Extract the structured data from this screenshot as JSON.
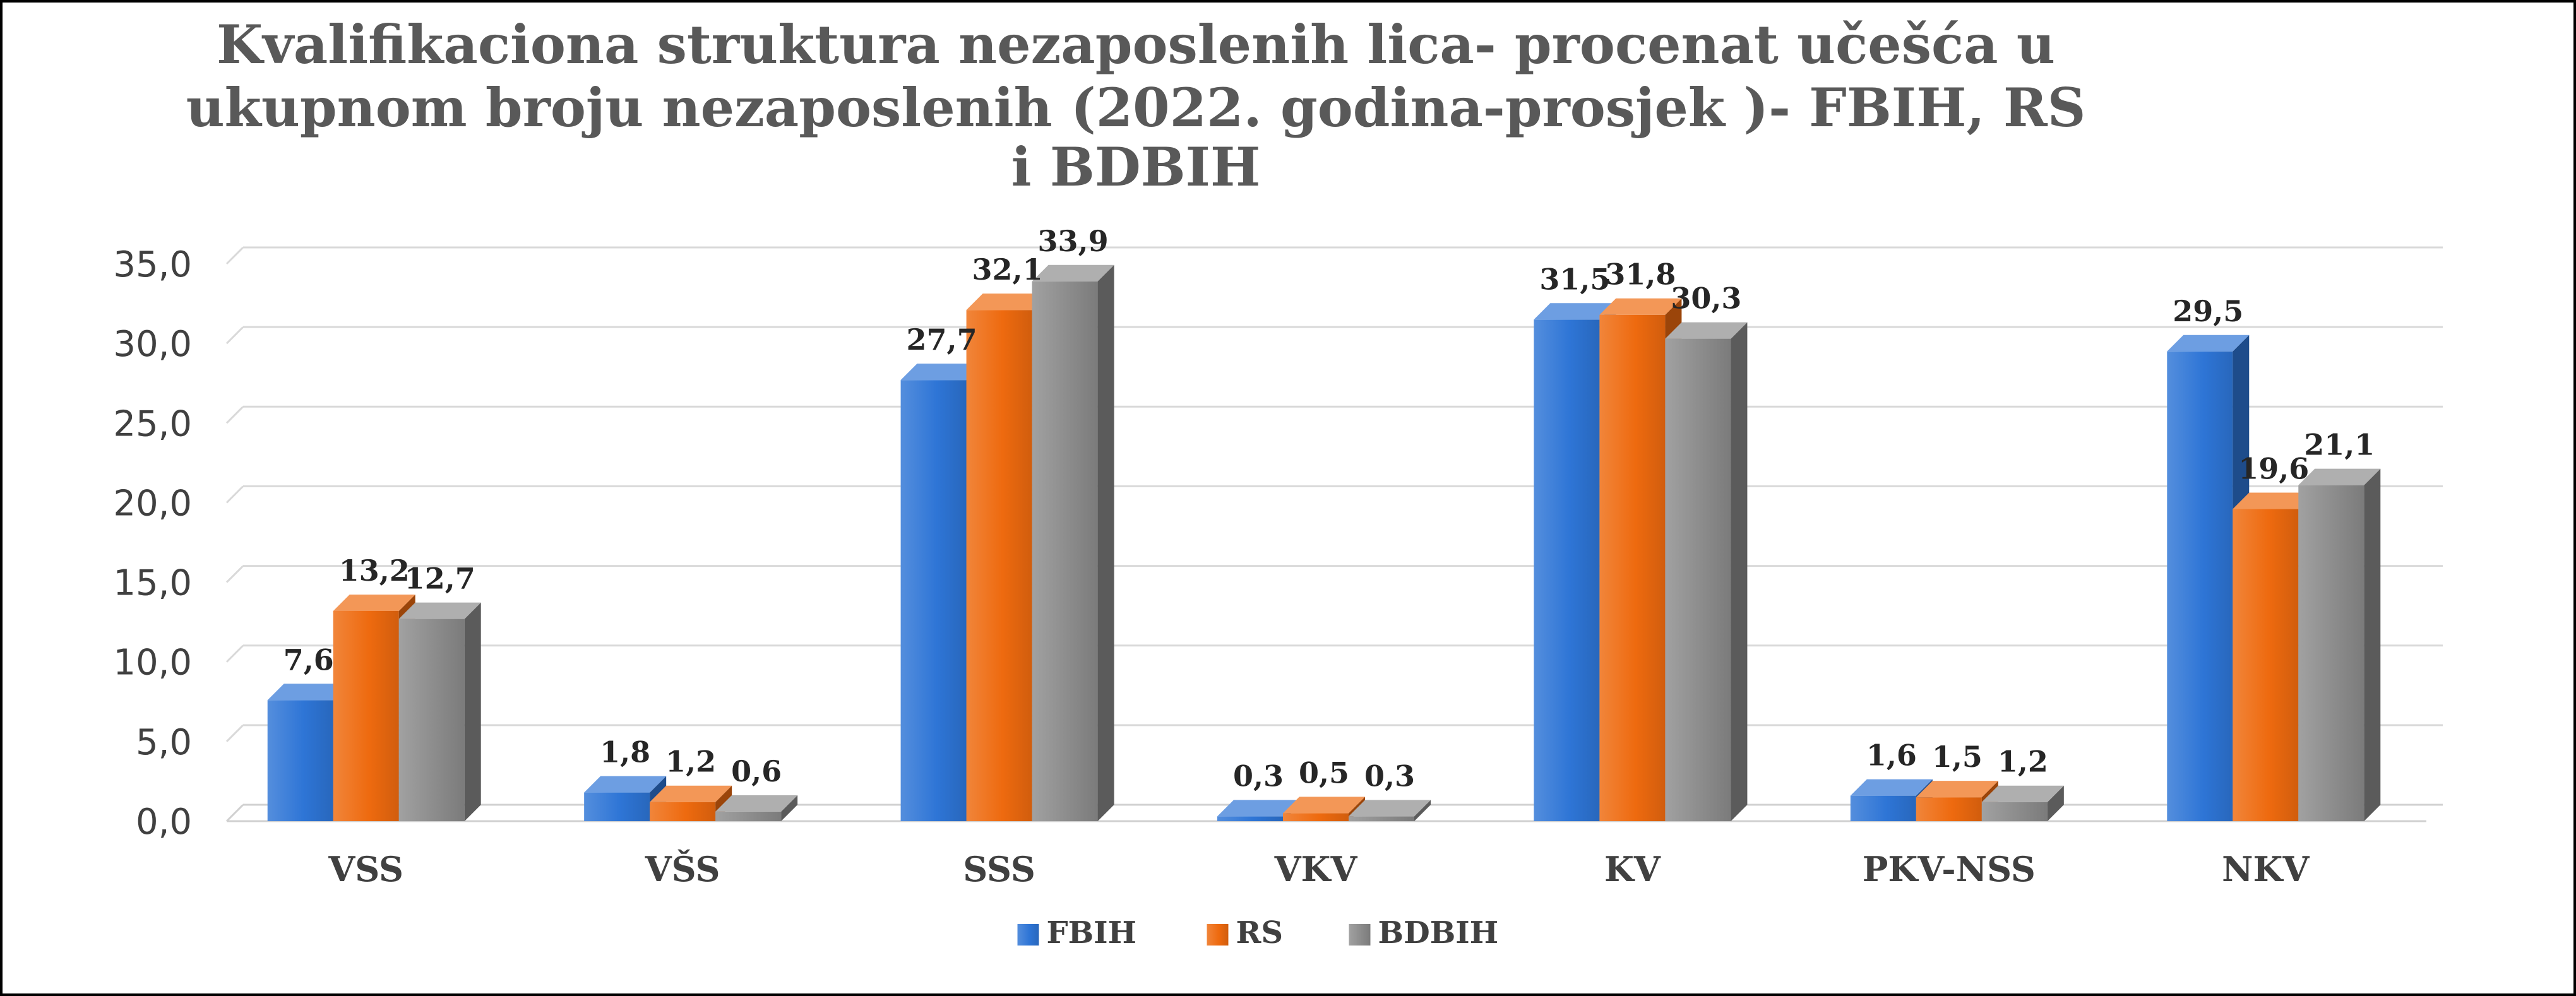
{
  "chart_data": {
    "type": "bar",
    "title_lines": [
      "Kvalifikaciona struktura  nezaposlenih lica- procenat učešća u",
      "ukupnom broju nezaposlenih (2022. godina-prosjek )- FBIH, RS",
      "i BDBIH"
    ],
    "categories": [
      "VSS",
      "VŠS",
      "SSS",
      "VKV",
      "KV",
      "PKV-NSS",
      "NKV"
    ],
    "series": [
      {
        "name": "FBIH",
        "color": "#2e75d6",
        "values": [
          7.6,
          1.8,
          27.7,
          0.3,
          31.5,
          1.6,
          29.5
        ],
        "labels": [
          "7,6",
          "1,8",
          "27,7",
          "0,3",
          "31,5",
          "1,6",
          "29,5"
        ]
      },
      {
        "name": "RS",
        "color": "#ee6a0f",
        "values": [
          13.2,
          1.2,
          32.1,
          0.5,
          31.8,
          1.5,
          19.6
        ],
        "labels": [
          "13,2",
          "1,2",
          "32,1",
          "0,5",
          "31,8",
          "1,5",
          "19,6"
        ]
      },
      {
        "name": "BDBIH",
        "color": "#8c8c8c",
        "values": [
          12.7,
          0.6,
          33.9,
          0.3,
          30.3,
          1.2,
          21.1
        ],
        "labels": [
          "12,7",
          "0,6",
          "33,9",
          "0,3",
          "30,3",
          "1,2",
          "21,1"
        ]
      }
    ],
    "yticks": [
      "0,0",
      "5,0",
      "10,0",
      "15,0",
      "20,0",
      "25,0",
      "30,0",
      "35,0"
    ],
    "ylim": [
      0,
      35
    ],
    "grid": true,
    "legend_position": "bottom",
    "colors": {
      "gridline": "#d9d9d9",
      "floor": "#d0d0d0"
    }
  }
}
